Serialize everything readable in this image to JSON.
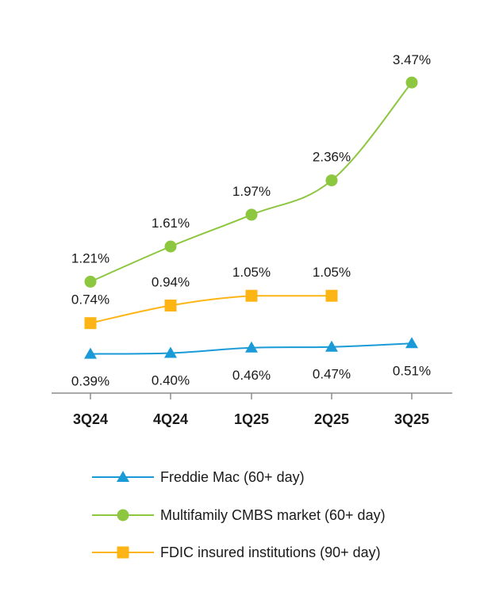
{
  "chart_data": {
    "type": "line",
    "title": "",
    "xlabel": "",
    "ylabel": "",
    "categories": [
      "3Q24",
      "4Q24",
      "1Q25",
      "2Q25",
      "3Q25"
    ],
    "ylim": [
      0,
      3.6
    ],
    "grid": false,
    "legend_position": "bottom",
    "series": [
      {
        "key": "freddie",
        "name": "Freddie Mac (60+ day)",
        "values": [
          0.39,
          0.4,
          0.46,
          0.47,
          0.51
        ],
        "labels": [
          "0.39%",
          "0.40%",
          "0.46%",
          "0.47%",
          "0.51%"
        ],
        "color": "#1a9bd7",
        "marker": "triangle"
      },
      {
        "key": "cmbs",
        "name": "Multifamily CMBS market (60+ day)",
        "values": [
          1.21,
          1.61,
          1.97,
          2.36,
          3.47
        ],
        "labels": [
          "1.21%",
          "1.61%",
          "1.97%",
          "2.36%",
          "3.47%"
        ],
        "color": "#8dc63f",
        "marker": "circle"
      },
      {
        "key": "fdic",
        "name": "FDIC insured institutions (90+ day)",
        "values": [
          0.74,
          0.94,
          1.05,
          1.05,
          null
        ],
        "labels": [
          "0.74%",
          "0.94%",
          "1.05%",
          "1.05%",
          null
        ],
        "color": "#fdb515",
        "marker": "square"
      }
    ]
  }
}
